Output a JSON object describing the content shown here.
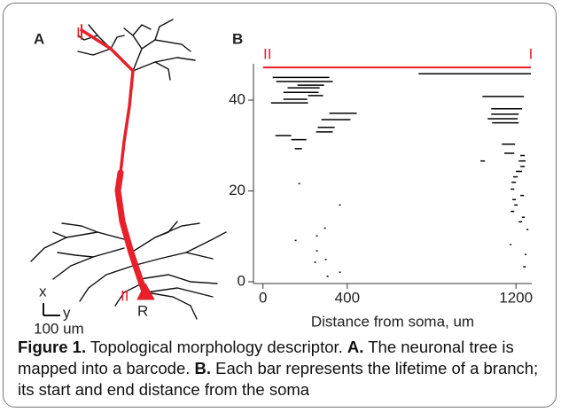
{
  "panels": {
    "a": {
      "label": "A",
      "tree_labels": {
        "top": "I",
        "bottom": "II",
        "root": "R"
      },
      "scale_bar": {
        "x": "x",
        "y": "y",
        "length": "100 um"
      }
    },
    "b": {
      "label": "B"
    }
  },
  "chart_data": {
    "type": "barcode",
    "xlabel": "Distance from soma, um",
    "xlim": [
      -45,
      1275
    ],
    "xticks": [
      0,
      400,
      1200
    ],
    "ylim": [
      0,
      48
    ],
    "yticks": [
      0,
      20,
      40
    ],
    "color": "#000000",
    "main_branch": {
      "start": 0,
      "end": 1271,
      "level": 47.2,
      "start_label": "II",
      "end_label": "I",
      "color": "#e8202a"
    },
    "starts": [
      738,
      46,
      63,
      164,
      117,
      97,
      214,
      1041,
      97,
      38,
      1083,
      315,
      1083,
      1066,
      277,
      1087,
      260,
      252,
      59,
      134,
      1133,
      151,
      1145,
      1221,
      1032,
      1213,
      1221,
      1200,
      1187,
      1179,
      168,
      1175,
      1221,
      1183,
      361,
      1192,
      1175,
      1229,
      1213,
      290,
      1250,
      252,
      151,
      1171,
      252,
      1242,
      294,
      243,
      1234,
      361,
      302
    ],
    "ends": [
      1271,
      315,
      331,
      290,
      269,
      264,
      285,
      1238,
      210,
      214,
      1229,
      445,
      1213,
      1208,
      415,
      1213,
      340,
      331,
      134,
      206,
      1196,
      185,
      1192,
      1242,
      1053,
      1246,
      1242,
      1229,
      1208,
      1200,
      176,
      1192,
      1238,
      1200,
      369,
      1208,
      1192,
      1242,
      1229,
      298,
      1259,
      260,
      159,
      1179,
      260,
      1250,
      302,
      252,
      1246,
      369,
      311
    ],
    "levels": [
      45.8,
      45.0,
      44.1,
      43.3,
      42.7,
      41.7,
      41.0,
      40.8,
      40.2,
      39.4,
      38.1,
      37.1,
      36.9,
      35.9,
      35.7,
      35.0,
      34.0,
      33.0,
      32.2,
      31.3,
      30.3,
      29.3,
      28.3,
      27.8,
      26.6,
      26.6,
      25.4,
      24.3,
      23.1,
      21.9,
      21.6,
      20.4,
      19.0,
      18.1,
      16.9,
      16.9,
      15.5,
      14.2,
      13.2,
      11.8,
      11.5,
      10.1,
      9.1,
      8.2,
      6.8,
      6.0,
      4.9,
      4.3,
      3.3,
      2.1,
      1.2
    ]
  },
  "caption": {
    "figure": "Figure 1.",
    "title": "Topological morphology descriptor.",
    "a_label": "A.",
    "a_text": "The neuronal tree is mapped into a barcode.",
    "b_label": "B.",
    "b_text": "Each bar represents the lifetime of a branch; its start and end distance from the soma"
  }
}
